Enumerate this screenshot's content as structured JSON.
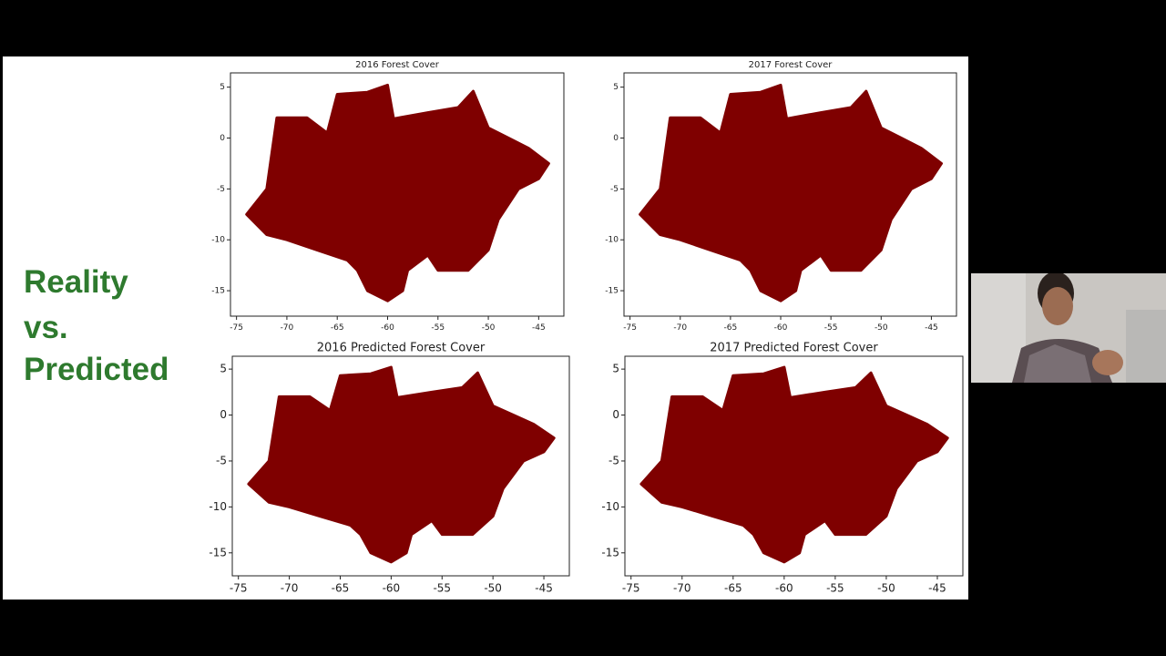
{
  "slide": {
    "title_lines": [
      "Reality",
      "vs.",
      "Predicted"
    ]
  },
  "chart_data": [
    {
      "type": "scatter",
      "title": "2016 Forest Cover",
      "color": "#7f0000",
      "x": [
        -74,
        -72,
        -71,
        -68,
        -66,
        -65,
        -62,
        -60,
        -59.4,
        -56,
        -53,
        -51.5,
        -50,
        -48,
        -46,
        -44,
        -45,
        -47,
        -49,
        -50,
        -52,
        -55,
        -56,
        -58,
        -58.5,
        -60,
        -62,
        -63,
        -64,
        -67,
        -70,
        -72
      ],
      "y": [
        -7.5,
        -5,
        2,
        2,
        0.5,
        4.3,
        4.5,
        5.2,
        1.9,
        2.5,
        3,
        4.6,
        1,
        0,
        -1,
        -2.5,
        -4,
        -5,
        -8,
        -11,
        -13,
        -13,
        -11.5,
        -13,
        -15,
        -16,
        -15,
        -13,
        -12,
        -11,
        -10,
        -9.5
      ],
      "xlim": [
        -75.6,
        -42.5
      ],
      "ylim": [
        -17.5,
        6.4
      ],
      "xticks": [
        -75,
        -70,
        -65,
        -60,
        -55,
        -50,
        -45
      ],
      "yticks": [
        -15,
        -10,
        -5,
        0,
        5
      ]
    },
    {
      "type": "scatter",
      "title": "2017 Forest Cover",
      "color": "#7f0000",
      "x": [
        -74,
        -72,
        -71,
        -68,
        -66,
        -65,
        -62,
        -60,
        -59.4,
        -56,
        -53,
        -51.5,
        -50,
        -48,
        -46,
        -44,
        -45,
        -47,
        -49,
        -50,
        -52,
        -55,
        -56,
        -58,
        -58.5,
        -60,
        -62,
        -63,
        -64,
        -67,
        -70,
        -72
      ],
      "y": [
        -7.5,
        -5,
        2,
        2,
        0.5,
        4.3,
        4.5,
        5.2,
        1.9,
        2.5,
        3,
        4.6,
        1,
        0,
        -1,
        -2.5,
        -4,
        -5,
        -8,
        -11,
        -13,
        -13,
        -11.5,
        -13,
        -15,
        -16,
        -15,
        -13,
        -12,
        -11,
        -10,
        -9.5
      ],
      "xlim": [
        -75.6,
        -42.5
      ],
      "ylim": [
        -17.5,
        6.4
      ],
      "xticks": [
        -75,
        -70,
        -65,
        -60,
        -55,
        -50,
        -45
      ],
      "yticks": [
        -15,
        -10,
        -5,
        0,
        5
      ]
    },
    {
      "type": "scatter",
      "title": "2016 Predicted Forest Cover",
      "color": "#7f0000",
      "x": [
        -74,
        -72,
        -71,
        -68,
        -66,
        -65,
        -62,
        -60,
        -59.4,
        -56,
        -53,
        -51.5,
        -50,
        -48,
        -46,
        -44,
        -45,
        -47,
        -49,
        -50,
        -52,
        -55,
        -56,
        -58,
        -58.5,
        -60,
        -62,
        -63,
        -64,
        -67,
        -70,
        -72
      ],
      "y": [
        -7.5,
        -5,
        2,
        2,
        0.5,
        4.3,
        4.5,
        5.2,
        1.9,
        2.5,
        3,
        4.6,
        1,
        0,
        -1,
        -2.5,
        -4,
        -5,
        -8,
        -11,
        -13,
        -13,
        -11.5,
        -13,
        -15,
        -16,
        -15,
        -13,
        -12,
        -11,
        -10,
        -9.5
      ],
      "xlim": [
        -75.6,
        -42.5
      ],
      "ylim": [
        -17.5,
        6.4
      ],
      "xticks": [
        -75,
        -70,
        -65,
        -60,
        -55,
        -50,
        -45
      ],
      "yticks": [
        -15,
        -10,
        -5,
        0,
        5
      ]
    },
    {
      "type": "scatter",
      "title": "2017 Predicted Forest Cover",
      "color": "#7f0000",
      "x": [
        -74,
        -72,
        -71,
        -68,
        -66,
        -65,
        -62,
        -60,
        -59.4,
        -56,
        -53,
        -51.5,
        -50,
        -48,
        -46,
        -44,
        -45,
        -47,
        -49,
        -50,
        -52,
        -55,
        -56,
        -58,
        -58.5,
        -60,
        -62,
        -63,
        -64,
        -67,
        -70,
        -72
      ],
      "y": [
        -7.5,
        -5,
        2,
        2,
        0.5,
        4.3,
        4.5,
        5.2,
        1.9,
        2.5,
        3,
        4.6,
        1,
        0,
        -1,
        -2.5,
        -4,
        -5,
        -8,
        -11,
        -13,
        -13,
        -11.5,
        -13,
        -15,
        -16,
        -15,
        -13,
        -12,
        -11,
        -10,
        -9.5
      ],
      "xlim": [
        -75.6,
        -42.5
      ],
      "ylim": [
        -17.5,
        6.4
      ],
      "xticks": [
        -75,
        -70,
        -65,
        -60,
        -55,
        -50,
        -45
      ],
      "yticks": [
        -15,
        -10,
        -5,
        0,
        5
      ]
    }
  ]
}
